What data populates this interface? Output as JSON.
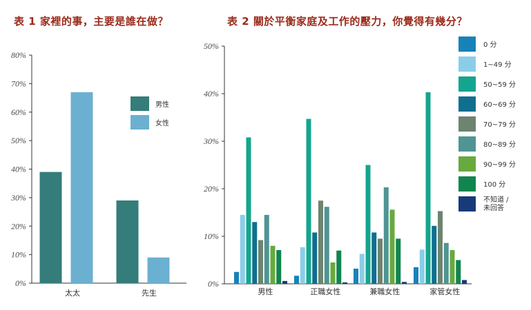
{
  "chart1": {
    "title": "表 1 家裡的事，主要是誰在做？",
    "chart_data": {
      "type": "bar",
      "categories": [
        "太太",
        "先生"
      ],
      "series": [
        {
          "name": "男性",
          "color": "#347d7a",
          "values": [
            39,
            29
          ]
        },
        {
          "name": "女性",
          "color": "#6cb0d1",
          "values": [
            67,
            9
          ]
        }
      ],
      "ylim": [
        0,
        80
      ],
      "yticks": [
        "0%",
        "10%",
        "20%",
        "30%",
        "40%",
        "50%",
        "60%",
        "70%",
        "80%"
      ],
      "legend": "right"
    }
  },
  "chart2": {
    "title": "表 2 關於平衡家庭及工作的壓力，你覺得有幾分？",
    "chart_data": {
      "type": "bar",
      "categories": [
        "男性",
        "正職女性",
        "兼職女性",
        "家管女性"
      ],
      "series": [
        {
          "name": "0 分",
          "color": "#1782b8",
          "values": [
            2.5,
            1.7,
            3.2,
            3.5
          ]
        },
        {
          "name": "1~49 分",
          "color": "#8bcde8",
          "values": [
            14.5,
            7.7,
            6.3,
            7.2
          ]
        },
        {
          "name": "50~59 分",
          "color": "#14a58e",
          "values": [
            30.8,
            34.7,
            25.0,
            40.3
          ]
        },
        {
          "name": "60~69 分",
          "color": "#0f6f8f",
          "values": [
            13.0,
            10.8,
            10.8,
            12.2
          ]
        },
        {
          "name": "70~79 分",
          "color": "#6d8470",
          "values": [
            9.2,
            17.5,
            9.5,
            15.3
          ]
        },
        {
          "name": "80~89 分",
          "color": "#509494",
          "values": [
            14.5,
            16.2,
            20.3,
            8.6
          ]
        },
        {
          "name": "90~99 分",
          "color": "#67aa3e",
          "values": [
            8.0,
            4.5,
            15.6,
            7.1
          ]
        },
        {
          "name": "100 分",
          "color": "#10854e",
          "values": [
            7.1,
            7.0,
            9.5,
            5.0
          ]
        },
        {
          "name": "不知道 / 未回答",
          "label_lines": [
            "不知道 /",
            "未回答"
          ],
          "color": "#173a78",
          "values": [
            0.6,
            0.3,
            0.4,
            0.8
          ]
        }
      ],
      "ylim": [
        0,
        50
      ],
      "yticks": [
        "0%",
        "10%",
        "20%",
        "30%",
        "40%",
        "50%"
      ],
      "legend": "right"
    }
  }
}
